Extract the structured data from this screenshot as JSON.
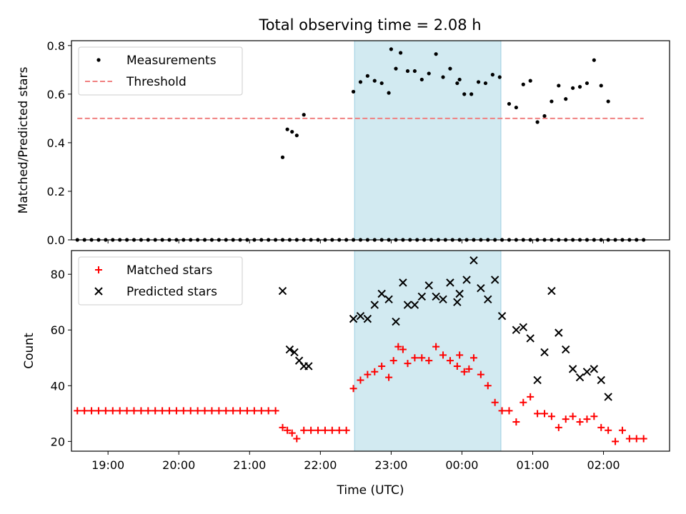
{
  "figure": {
    "title": "Total observing time = 2.08 h"
  },
  "chart_data": [
    {
      "type": "scatter",
      "title": "Total observing time = 2.08 h",
      "xlabel": "",
      "ylabel": "Matched/Predicted stars",
      "xlim": [
        "18:29",
        "02:56"
      ],
      "ylim": [
        0,
        0.82
      ],
      "yticks": [
        "0.0",
        "0.2",
        "0.4",
        "0.6",
        "0.8"
      ],
      "xticks": [
        "19:00",
        "20:00",
        "21:00",
        "22:00",
        "23:00",
        "00:00",
        "01:00",
        "02:00"
      ],
      "xtick_values": [
        "19:00",
        "20:00",
        "21:00",
        "22:00",
        "23:00",
        "00:00",
        "01:00",
        "02:00"
      ],
      "highlight_span": [
        "22:29",
        "00:33"
      ],
      "highlight_color": "#add8e6",
      "legend_position": "top-left",
      "series": [
        {
          "name": "Measurements",
          "marker": "dot",
          "color": "#000000",
          "x": [
            "18:34",
            "18:40",
            "18:46",
            "18:52",
            "18:58",
            "19:04",
            "19:10",
            "19:16",
            "19:22",
            "19:28",
            "19:34",
            "19:40",
            "19:46",
            "19:52",
            "19:58",
            "20:04",
            "20:10",
            "20:16",
            "20:22",
            "20:28",
            "20:34",
            "20:40",
            "20:46",
            "20:52",
            "20:58",
            "21:04",
            "21:10",
            "21:16",
            "21:22",
            "21:28",
            "21:34",
            "21:40",
            "21:46",
            "21:52",
            "21:58",
            "22:04",
            "22:10",
            "22:16",
            "22:22",
            "22:28",
            "22:34",
            "22:40",
            "22:46",
            "22:52",
            "22:58",
            "23:04",
            "23:10",
            "23:16",
            "23:22",
            "23:28",
            "23:34",
            "23:40",
            "23:46",
            "23:52",
            "23:58",
            "00:04",
            "00:10",
            "00:16",
            "00:22",
            "00:28",
            "00:34",
            "00:40",
            "00:46",
            "00:52",
            "00:58",
            "01:04",
            "01:10",
            "01:16",
            "01:22",
            "01:28",
            "01:34",
            "01:40",
            "01:46",
            "01:52",
            "01:58",
            "02:04",
            "02:10",
            "02:16",
            "02:22",
            "02:28",
            "02:34"
          ],
          "y": [
            0,
            0,
            0,
            0,
            0,
            0,
            0,
            0,
            0,
            0,
            0,
            0,
            0,
            0,
            0,
            0,
            0,
            0,
            0,
            0,
            0,
            0,
            0,
            0,
            0,
            0,
            0,
            0,
            0,
            0,
            0,
            0,
            0,
            0,
            0,
            0,
            0,
            0,
            0,
            0,
            0,
            0,
            0,
            0,
            0,
            0,
            0,
            0,
            0,
            0,
            0,
            0,
            0,
            0,
            0,
            0,
            0,
            0,
            0,
            0,
            0,
            0,
            0,
            0,
            0,
            0,
            0,
            0,
            0,
            0,
            0,
            0,
            0,
            0,
            0,
            0,
            0,
            0,
            0,
            0,
            0
          ],
          "x_b": [
            "21:28",
            "21:32",
            "21:36",
            "21:40",
            "21:46",
            "22:28",
            "22:34",
            "22:40",
            "22:46",
            "22:52",
            "22:58",
            "23:00",
            "23:04",
            "23:08",
            "23:14",
            "23:20",
            "23:26",
            "23:32",
            "23:38",
            "23:44",
            "23:50",
            "23:56",
            "23:58",
            "00:02",
            "00:08",
            "00:14",
            "00:20",
            "00:26",
            "00:32",
            "00:40",
            "00:46",
            "00:52",
            "00:58",
            "01:04",
            "01:10",
            "01:16",
            "01:22",
            "01:28",
            "01:34",
            "01:40",
            "01:46",
            "01:52",
            "01:58",
            "02:04"
          ],
          "y_b": [
            0.34,
            0.455,
            0.445,
            0.43,
            0.515,
            0.61,
            0.65,
            0.675,
            0.655,
            0.645,
            0.605,
            0.785,
            0.705,
            0.77,
            0.695,
            0.695,
            0.66,
            0.685,
            0.765,
            0.67,
            0.705,
            0.645,
            0.66,
            0.6,
            0.6,
            0.65,
            0.645,
            0.68,
            0.67,
            0.56,
            0.545,
            0.64,
            0.655,
            0.485,
            0.51,
            0.57,
            0.635,
            0.58,
            0.625,
            0.63,
            0.645,
            0.74,
            0.635,
            0.57
          ]
        },
        {
          "name": "Threshold",
          "marker": "dashed-line",
          "color": "#f08080",
          "x": [
            "18:34",
            "02:34"
          ],
          "y": [
            0.5,
            0.5
          ]
        }
      ]
    },
    {
      "type": "scatter",
      "title": "",
      "xlabel": "Time (UTC)",
      "ylabel": "Count",
      "xlim": [
        "18:29",
        "02:56"
      ],
      "ylim": [
        16.5,
        88.5
      ],
      "yticks": [
        "20",
        "40",
        "60",
        "80"
      ],
      "ytick_values": [
        20,
        40,
        60,
        80
      ],
      "xticks": [
        "19:00",
        "20:00",
        "21:00",
        "22:00",
        "23:00",
        "00:00",
        "01:00",
        "02:00"
      ],
      "xtick_values": [
        "19:00",
        "20:00",
        "21:00",
        "22:00",
        "23:00",
        "00:00",
        "01:00",
        "02:00"
      ],
      "highlight_span": [
        "22:29",
        "00:33"
      ],
      "highlight_color": "#add8e6",
      "legend_position": "top-left",
      "series": [
        {
          "name": "Matched stars",
          "marker": "plus",
          "color": "#ff0000",
          "x": [
            "18:34",
            "18:40",
            "18:46",
            "18:52",
            "18:58",
            "19:04",
            "19:10",
            "19:16",
            "19:22",
            "19:28",
            "19:34",
            "19:40",
            "19:46",
            "19:52",
            "19:58",
            "20:04",
            "20:10",
            "20:16",
            "20:22",
            "20:28",
            "20:34",
            "20:40",
            "20:46",
            "20:52",
            "20:58",
            "21:04",
            "21:10",
            "21:16",
            "21:22",
            "21:28",
            "21:32",
            "21:36",
            "21:40",
            "21:46",
            "21:52",
            "21:58",
            "22:04",
            "22:10",
            "22:16",
            "22:22",
            "22:28",
            "22:34",
            "22:40",
            "22:46",
            "22:52",
            "22:58",
            "23:02",
            "23:06",
            "23:10",
            "23:14",
            "23:20",
            "23:26",
            "23:32",
            "23:38",
            "23:44",
            "23:50",
            "23:56",
            "23:58",
            "00:02",
            "00:06",
            "00:10",
            "00:16",
            "00:22",
            "00:28",
            "00:34",
            "00:40",
            "00:46",
            "00:52",
            "00:58",
            "01:04",
            "01:10",
            "01:16",
            "01:22",
            "01:28",
            "01:34",
            "01:40",
            "01:46",
            "01:52",
            "01:58",
            "02:04",
            "02:10",
            "02:16",
            "02:22",
            "02:28",
            "02:34"
          ],
          "y": [
            31,
            31,
            31,
            31,
            31,
            31,
            31,
            31,
            31,
            31,
            31,
            31,
            31,
            31,
            31,
            31,
            31,
            31,
            31,
            31,
            31,
            31,
            31,
            31,
            31,
            31,
            31,
            31,
            31,
            25,
            24,
            23,
            21,
            24,
            24,
            24,
            24,
            24,
            24,
            24,
            39,
            42,
            44,
            45,
            47,
            43,
            49,
            54,
            53,
            48,
            50,
            50,
            49,
            54,
            51,
            49,
            47,
            51,
            45,
            46,
            50,
            44,
            40,
            34,
            31,
            31,
            27,
            34,
            36,
            30,
            30,
            29,
            25,
            28,
            29,
            27,
            28,
            29,
            25,
            24,
            20,
            24,
            21,
            21,
            21
          ]
        },
        {
          "name": "Predicted stars",
          "marker": "x",
          "color": "#000000",
          "x": [
            "21:28",
            "21:34",
            "21:38",
            "21:42",
            "21:46",
            "21:50",
            "22:28",
            "22:34",
            "22:40",
            "22:46",
            "22:52",
            "22:58",
            "23:04",
            "23:10",
            "23:14",
            "23:20",
            "23:26",
            "23:32",
            "23:38",
            "23:44",
            "23:50",
            "23:56",
            "23:58",
            "00:04",
            "00:10",
            "00:16",
            "00:22",
            "00:28",
            "00:34",
            "00:46",
            "00:52",
            "00:58",
            "01:04",
            "01:10",
            "01:16",
            "01:22",
            "01:28",
            "01:34",
            "01:40",
            "01:46",
            "01:52",
            "01:58",
            "02:04"
          ],
          "y": [
            74,
            53,
            52,
            49,
            47,
            47,
            64,
            65,
            64,
            69,
            73,
            71,
            63,
            77,
            69,
            69,
            72,
            76,
            72,
            71,
            77,
            70,
            73,
            78,
            85,
            75,
            71,
            78,
            65,
            60,
            61,
            57,
            42,
            52,
            74,
            59,
            53,
            46,
            43,
            45,
            46,
            42,
            36
          ]
        }
      ]
    }
  ]
}
